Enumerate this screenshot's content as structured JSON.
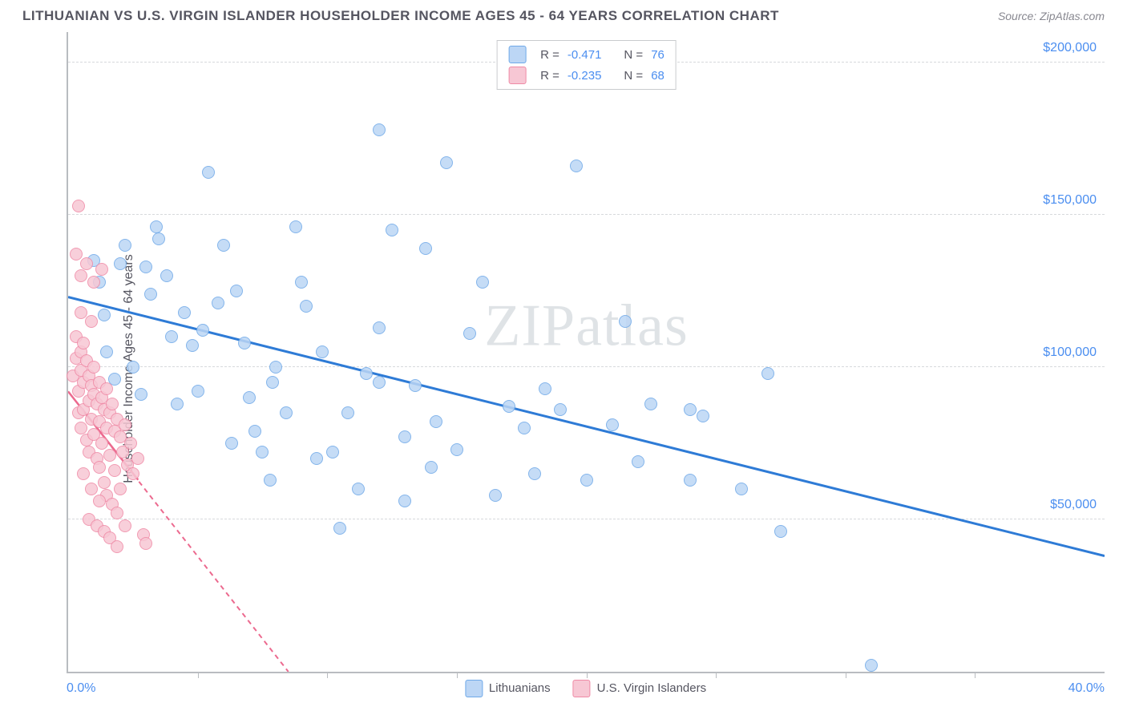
{
  "header": {
    "title": "LITHUANIAN VS U.S. VIRGIN ISLANDER HOUSEHOLDER INCOME AGES 45 - 64 YEARS CORRELATION CHART",
    "source": "Source: ZipAtlas.com"
  },
  "watermark": "ZIPatlas",
  "chart": {
    "type": "scatter",
    "ylabel": "Householder Income Ages 45 - 64 years",
    "xlim": [
      0,
      40
    ],
    "ylim": [
      0,
      210000
    ],
    "xtick_positions": [
      5,
      10,
      15,
      20,
      25,
      30,
      35
    ],
    "xaxis_min_label": "0.0%",
    "xaxis_max_label": "40.0%",
    "yticks": [
      {
        "v": 50000,
        "label": "$50,000"
      },
      {
        "v": 100000,
        "label": "$100,000"
      },
      {
        "v": 150000,
        "label": "$150,000"
      },
      {
        "v": 200000,
        "label": "$200,000"
      }
    ],
    "grid_color": "#d7d9dc",
    "axis_color": "#b9bcc0",
    "background_color": "#ffffff",
    "series": [
      {
        "name": "Lithuanians",
        "marker_fill": "#bcd6f5",
        "marker_stroke": "#6fa9e8",
        "marker_size": 16,
        "trend": {
          "color": "#2e7bd6",
          "width": 3,
          "dash": "none",
          "x1": 0,
          "y1": 123000,
          "x2": 40,
          "y2": 38000
        },
        "R": "-0.471",
        "N": "76",
        "points": [
          [
            1.0,
            135000
          ],
          [
            1.2,
            128000
          ],
          [
            1.4,
            117000
          ],
          [
            1.5,
            105000
          ],
          [
            1.8,
            96000
          ],
          [
            2.0,
            134000
          ],
          [
            2.2,
            140000
          ],
          [
            2.5,
            100000
          ],
          [
            2.8,
            91000
          ],
          [
            3.0,
            133000
          ],
          [
            3.2,
            124000
          ],
          [
            3.5,
            142000
          ],
          [
            3.8,
            130000
          ],
          [
            4.0,
            110000
          ],
          [
            4.2,
            88000
          ],
          [
            4.5,
            118000
          ],
          [
            4.8,
            107000
          ],
          [
            5.0,
            92000
          ],
          [
            5.4,
            164000
          ],
          [
            5.8,
            121000
          ],
          [
            6.0,
            140000
          ],
          [
            6.5,
            125000
          ],
          [
            6.8,
            108000
          ],
          [
            7.0,
            90000
          ],
          [
            7.2,
            79000
          ],
          [
            7.5,
            72000
          ],
          [
            7.8,
            63000
          ],
          [
            8.0,
            100000
          ],
          [
            8.4,
            85000
          ],
          [
            8.8,
            146000
          ],
          [
            9.2,
            120000
          ],
          [
            9.6,
            70000
          ],
          [
            9.8,
            105000
          ],
          [
            10.2,
            72000
          ],
          [
            10.5,
            47000
          ],
          [
            10.8,
            85000
          ],
          [
            11.2,
            60000
          ],
          [
            11.5,
            98000
          ],
          [
            12.0,
            113000
          ],
          [
            12.0,
            178000
          ],
          [
            12.5,
            145000
          ],
          [
            13.0,
            77000
          ],
          [
            13.0,
            56000
          ],
          [
            13.4,
            94000
          ],
          [
            13.8,
            139000
          ],
          [
            14.2,
            82000
          ],
          [
            14.6,
            167000
          ],
          [
            15.0,
            73000
          ],
          [
            15.5,
            111000
          ],
          [
            16.0,
            128000
          ],
          [
            16.5,
            58000
          ],
          [
            17.0,
            87000
          ],
          [
            17.6,
            80000
          ],
          [
            18.0,
            65000
          ],
          [
            18.4,
            93000
          ],
          [
            19.0,
            86000
          ],
          [
            19.6,
            166000
          ],
          [
            20.0,
            63000
          ],
          [
            21.0,
            81000
          ],
          [
            21.5,
            115000
          ],
          [
            22.0,
            69000
          ],
          [
            22.5,
            88000
          ],
          [
            24.0,
            63000
          ],
          [
            24.0,
            86000
          ],
          [
            24.5,
            84000
          ],
          [
            26.0,
            60000
          ],
          [
            27.0,
            98000
          ],
          [
            27.5,
            46000
          ],
          [
            31.0,
            2000
          ],
          [
            12.0,
            95000
          ],
          [
            6.3,
            75000
          ],
          [
            3.4,
            146000
          ],
          [
            5.2,
            112000
          ],
          [
            7.9,
            95000
          ],
          [
            9.0,
            128000
          ],
          [
            14.0,
            67000
          ]
        ]
      },
      {
        "name": "U.S. Virgin Islanders",
        "marker_fill": "#f7c7d4",
        "marker_stroke": "#ef8aa6",
        "marker_size": 16,
        "trend": {
          "color": "#ec6a8f",
          "width": 2,
          "dash": "6,5",
          "x1": 0,
          "y1": 92000,
          "x2": 8.5,
          "y2": 0
        },
        "trend_solid": {
          "color": "#ec6a8f",
          "width": 2.5,
          "x1": 0,
          "y1": 92000,
          "x2": 2.7,
          "y2": 63000
        },
        "R": "-0.235",
        "N": "68",
        "points": [
          [
            0.2,
            97000
          ],
          [
            0.3,
            103000
          ],
          [
            0.3,
            110000
          ],
          [
            0.4,
            92000
          ],
          [
            0.4,
            85000
          ],
          [
            0.5,
            99000
          ],
          [
            0.5,
            105000
          ],
          [
            0.5,
            80000
          ],
          [
            0.6,
            95000
          ],
          [
            0.6,
            108000
          ],
          [
            0.6,
            86000
          ],
          [
            0.7,
            102000
          ],
          [
            0.7,
            76000
          ],
          [
            0.8,
            97000
          ],
          [
            0.8,
            89000
          ],
          [
            0.8,
            72000
          ],
          [
            0.9,
            94000
          ],
          [
            0.9,
            83000
          ],
          [
            1.0,
            100000
          ],
          [
            1.0,
            91000
          ],
          [
            1.0,
            78000
          ],
          [
            1.1,
            88000
          ],
          [
            1.1,
            70000
          ],
          [
            1.2,
            95000
          ],
          [
            1.2,
            82000
          ],
          [
            1.2,
            67000
          ],
          [
            1.3,
            90000
          ],
          [
            1.3,
            75000
          ],
          [
            1.4,
            86000
          ],
          [
            1.4,
            62000
          ],
          [
            1.5,
            93000
          ],
          [
            1.5,
            80000
          ],
          [
            1.5,
            58000
          ],
          [
            1.6,
            85000
          ],
          [
            1.6,
            71000
          ],
          [
            1.7,
            88000
          ],
          [
            1.7,
            55000
          ],
          [
            1.8,
            79000
          ],
          [
            1.8,
            66000
          ],
          [
            1.9,
            83000
          ],
          [
            1.9,
            52000
          ],
          [
            2.0,
            77000
          ],
          [
            2.0,
            60000
          ],
          [
            2.1,
            72000
          ],
          [
            2.2,
            81000
          ],
          [
            2.3,
            68000
          ],
          [
            2.4,
            75000
          ],
          [
            2.5,
            65000
          ],
          [
            2.7,
            70000
          ],
          [
            2.9,
            45000
          ],
          [
            3.0,
            42000
          ],
          [
            0.3,
            137000
          ],
          [
            0.5,
            130000
          ],
          [
            0.7,
            134000
          ],
          [
            1.0,
            128000
          ],
          [
            1.3,
            132000
          ],
          [
            0.4,
            153000
          ],
          [
            0.8,
            50000
          ],
          [
            1.1,
            48000
          ],
          [
            1.4,
            46000
          ],
          [
            1.6,
            44000
          ],
          [
            1.9,
            41000
          ],
          [
            2.2,
            48000
          ],
          [
            0.6,
            65000
          ],
          [
            0.9,
            60000
          ],
          [
            1.2,
            56000
          ],
          [
            0.5,
            118000
          ],
          [
            0.9,
            115000
          ]
        ]
      }
    ],
    "top_legend": {
      "rows": [
        {
          "swatch": "#bcd6f5",
          "border": "#6fa9e8",
          "r_label": "R =",
          "r_val": "-0.471",
          "n_label": "N =",
          "n_val": "76"
        },
        {
          "swatch": "#f7c7d4",
          "border": "#ef8aa6",
          "r_label": "R =",
          "r_val": "-0.235",
          "n_label": "N =",
          "n_val": "68"
        }
      ]
    },
    "bottom_legend": [
      {
        "swatch": "#bcd6f5",
        "border": "#6fa9e8",
        "label": "Lithuanians"
      },
      {
        "swatch": "#f7c7d4",
        "border": "#ef8aa6",
        "label": "U.S. Virgin Islanders"
      }
    ]
  }
}
